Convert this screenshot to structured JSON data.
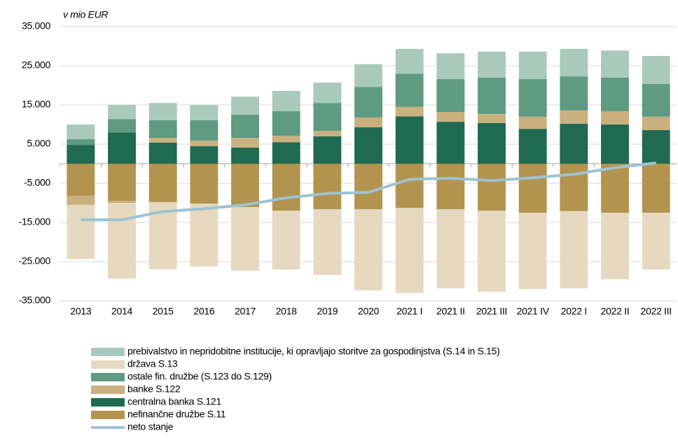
{
  "chart_data": {
    "type": "bar",
    "subtitle": "v mio  EUR",
    "categories": [
      "2013",
      "2014",
      "2015",
      "2016",
      "2017",
      "2018",
      "2019",
      "2020",
      "2021 I",
      "2021 II",
      "2021 III",
      "2021 IV",
      "2022 I",
      "2022 II",
      "2022 III"
    ],
    "ylim": [
      -35000,
      35000
    ],
    "yticks": [
      {
        "value": -35000,
        "label": "-35.000"
      },
      {
        "value": -25000,
        "label": "-25.000"
      },
      {
        "value": -15000,
        "label": "-15.000"
      },
      {
        "value": -5000,
        "label": "-5.000"
      },
      {
        "value": 5000,
        "label": "5.000"
      },
      {
        "value": 15000,
        "label": "15.000"
      },
      {
        "value": 25000,
        "label": "25.000"
      },
      {
        "value": 35000,
        "label": "35.000"
      }
    ],
    "grid": true,
    "stacked": true,
    "series": [
      {
        "name": "prebivalstvo in nepridobitne institucije, ki opravljajo storitve za gospodinjstva (S.14 in S.15)",
        "color": "#a9c9bc",
        "values": [
          3750,
          3600,
          4400,
          3900,
          4600,
          5200,
          5200,
          5800,
          6300,
          6600,
          6600,
          7000,
          7000,
          6900,
          7100
        ]
      },
      {
        "name": "država S.13",
        "color": "#e6d9c0",
        "values": [
          -13800,
          -19300,
          -17100,
          -16000,
          -16200,
          -15000,
          -16800,
          -20700,
          -21700,
          -20200,
          -20700,
          -19500,
          -19700,
          -17000,
          -14500
        ]
      },
      {
        "name": "ostale fin. družbe (S.123 do S.129)",
        "color": "#5f9a82",
        "values": [
          1450,
          3400,
          4500,
          5200,
          5900,
          6300,
          7100,
          7800,
          8500,
          8400,
          9300,
          9600,
          8700,
          8600,
          8400
        ]
      },
      {
        "name": "banke S.122",
        "color": "#c9b07e",
        "values": [
          -2300,
          -500,
          1200,
          1400,
          2500,
          1600,
          1400,
          2500,
          2400,
          2500,
          2300,
          3100,
          3400,
          3400,
          3400
        ]
      },
      {
        "name": "centralna banka S.121",
        "color": "#1f6a51",
        "values": [
          4800,
          8000,
          5400,
          4500,
          4100,
          5500,
          7000,
          9300,
          12100,
          10700,
          10400,
          8900,
          10200,
          10000,
          8600
        ]
      },
      {
        "name": "nefinančne družbe S.11",
        "color": "#b2944f",
        "values": [
          -8200,
          -9500,
          -9800,
          -10200,
          -11100,
          -12000,
          -11600,
          -11600,
          -11300,
          -11600,
          -12000,
          -12500,
          -12100,
          -12500,
          -12500
        ]
      },
      {
        "name": "neto stanje",
        "color": "#9cc3d3",
        "type": "line",
        "values": [
          -14300,
          -14300,
          -12200,
          -11500,
          -10500,
          -8700,
          -7600,
          -7300,
          -4000,
          -3700,
          -4300,
          -3600,
          -2700,
          -1000,
          200
        ]
      }
    ]
  }
}
